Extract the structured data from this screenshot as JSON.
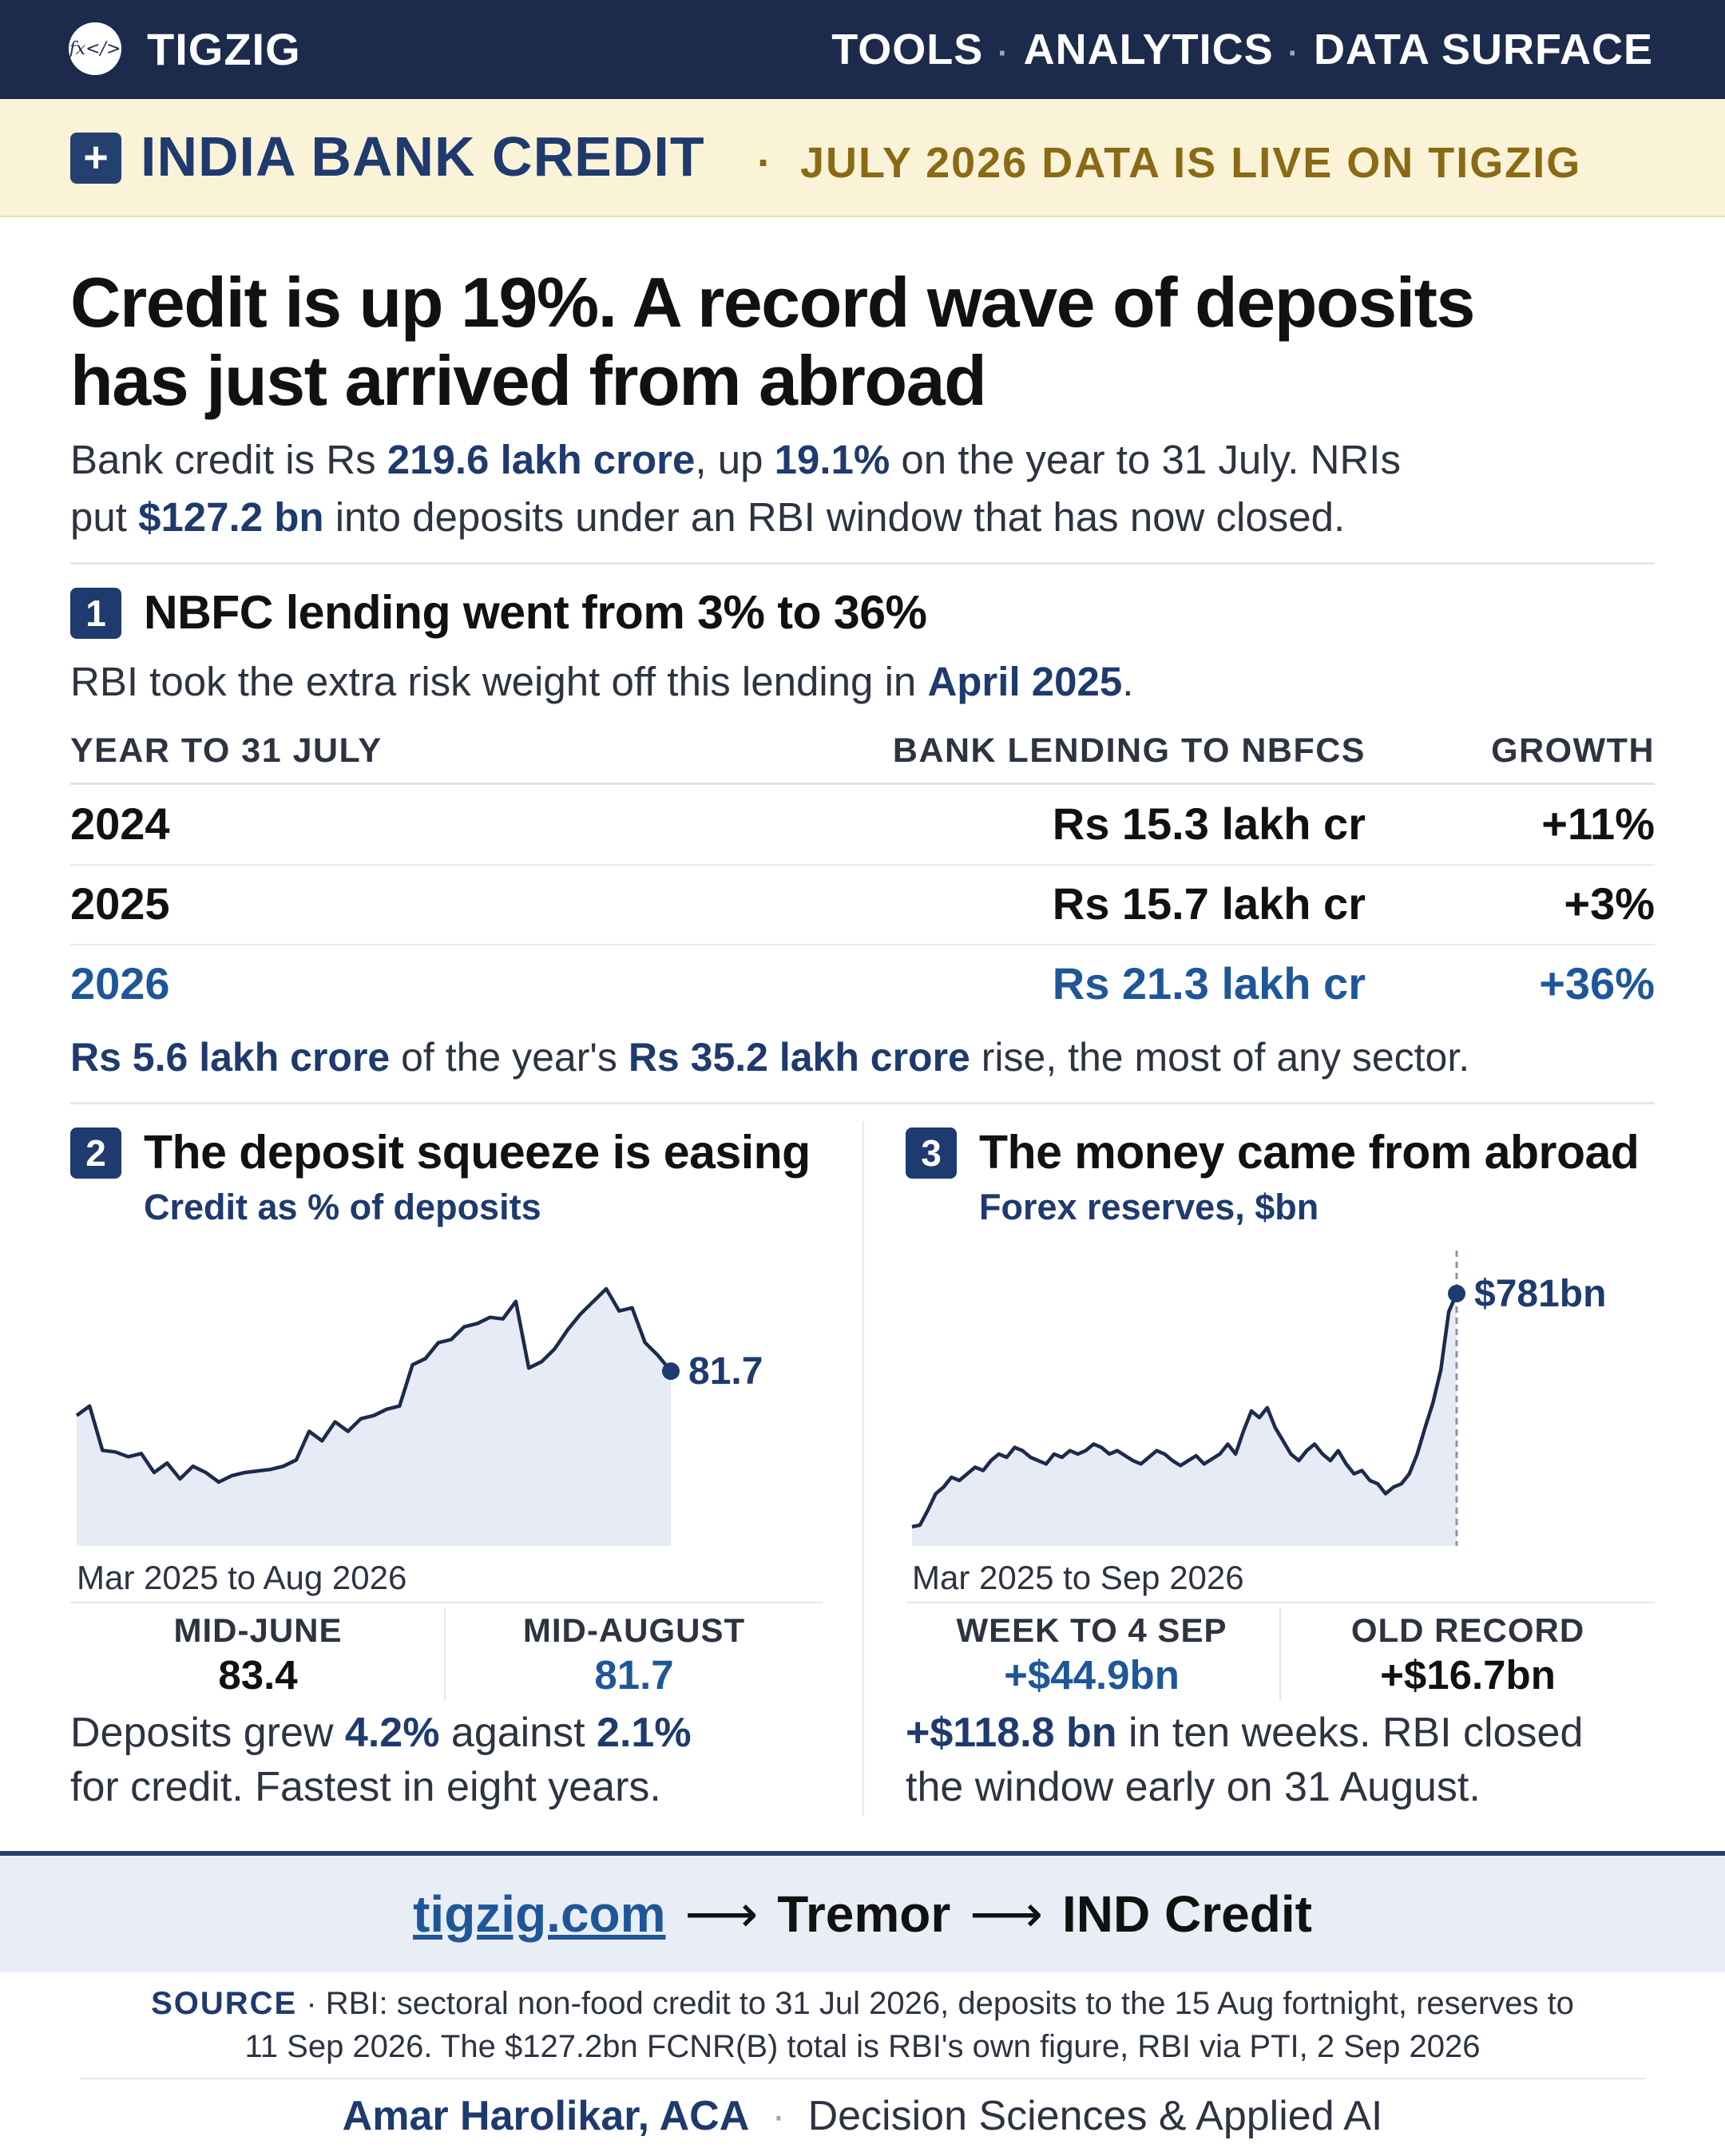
{
  "header": {
    "brand": "TIGZIG",
    "logo_text": "fx</>",
    "nav": [
      "TOOLS",
      "ANALYTICS",
      "DATA SURFACE"
    ],
    "separator": "·"
  },
  "banner": {
    "icon": "plus-icon",
    "title": "INDIA BANK CREDIT",
    "subtitle": "JULY 2026 DATA IS LIVE ON TIGZIG"
  },
  "headline": {
    "line1": "Credit is up 19%. A record wave of deposits",
    "line2": "has just arrived from abroad"
  },
  "lead": {
    "p1": "Bank credit is Rs ",
    "b1": "219.6 lakh crore",
    "p2": ", up ",
    "b2": "19.1%",
    "p3": " on the year to 31 July. NRIs",
    "p4": "put ",
    "b3": "$127.2 bn",
    "p5": " into deposits under an RBI window that has now closed."
  },
  "section1": {
    "number": "1",
    "title": "NBFC lending went from 3% to 36%",
    "sub_prefix": "RBI took the extra risk weight off this lending in ",
    "sub_bold": "April 2025",
    "sub_suffix": ".",
    "columns": [
      "YEAR TO 31 JULY",
      "BANK LENDING TO NBFCS",
      "GROWTH"
    ],
    "rows": [
      {
        "year": "2024",
        "lending": "Rs 15.3 lakh cr",
        "growth": "+11%"
      },
      {
        "year": "2025",
        "lending": "Rs 15.7 lakh cr",
        "growth": "+3%"
      },
      {
        "year": "2026",
        "lending": "Rs 21.3 lakh cr",
        "growth": "+36%"
      }
    ],
    "note_b1": "Rs 5.6 lakh crore",
    "note_t1": " of the year's ",
    "note_b2": "Rs 35.2 lakh crore",
    "note_t2": " rise, the most of any sector."
  },
  "section2": {
    "number": "2",
    "title": "The deposit squeeze is easing",
    "chart_subtitle": "Credit as % of deposits",
    "end_label": "81.7",
    "range": "Mar 2025 to Aug 2026",
    "stats": [
      {
        "label": "MID-JUNE",
        "value": "83.4"
      },
      {
        "label": "MID-AUGUST",
        "value": "81.7"
      }
    ],
    "para_t1": "Deposits grew ",
    "para_b1": "4.2%",
    "para_t2": " against ",
    "para_b2": "2.1%",
    "para_t3": "for credit. Fastest in eight years."
  },
  "section3": {
    "number": "3",
    "title": "The money came from abroad",
    "chart_subtitle": "Forex reserves, $bn",
    "end_label": "$781bn",
    "range": "Mar 2025 to Sep 2026",
    "stats": [
      {
        "label": "WEEK TO 4 SEP",
        "value": "+$44.9bn"
      },
      {
        "label": "OLD RECORD",
        "value": "+$16.7bn"
      }
    ],
    "para_b1": "+$118.8 bn",
    "para_t1": " in ten weeks. RBI closed",
    "para_t2": "the window early on 31 August."
  },
  "cta": {
    "link": "tigzig.com",
    "arrow": "⟶",
    "step1": "Tremor",
    "step2": "IND Credit"
  },
  "source": {
    "label": "SOURCE",
    "sep": "·",
    "text1": "RBI: sectoral non-food credit to 31 Jul 2026, deposits to the 15 Aug fortnight, reserves to",
    "text2": "11 Sep 2026. The $127.2bn FCNR(B) total is RBI's own figure, RBI via PTI, 2 Sep 2026"
  },
  "signature": {
    "name": "Amar Harolikar, ACA",
    "sep": "·",
    "role": "Decision Sciences & Applied AI"
  },
  "colors": {
    "navy": "#1c2b4b",
    "accent": "#1e3a6e",
    "highlight": "#1e5799",
    "banner_bg": "#fbf3d7",
    "banner_sub": "#8a6a14",
    "area_fill": "#e6ebf5"
  },
  "chart_data": [
    {
      "type": "area",
      "title": "Credit as % of deposits",
      "xlabel": "Mar 2025 to Aug 2026",
      "series": [
        {
          "values": [
            80.3,
            80.6,
            79.2,
            79.15,
            79.0,
            79.1,
            78.5,
            78.8,
            78.3,
            78.7,
            78.5,
            78.2,
            78.4,
            78.5,
            78.55,
            78.6,
            78.7,
            78.9,
            79.8,
            79.5,
            80.1,
            79.8,
            80.2,
            80.3,
            80.5,
            80.6,
            81.9,
            82.1,
            82.6,
            82.7,
            83.1,
            83.2,
            83.4,
            83.35,
            83.9,
            81.8,
            82.0,
            82.4,
            83.0,
            83.5,
            83.9,
            84.3,
            83.6,
            83.7,
            82.6,
            82.2,
            81.7
          ]
        }
      ],
      "annotation": "81.7"
    },
    {
      "type": "area",
      "title": "Forex reserves, $bn",
      "xlabel": "Mar 2025 to Sep 2026",
      "series": [
        {
          "values": [
            640,
            641,
            650,
            660,
            664,
            670,
            668,
            672,
            676,
            674,
            680,
            684,
            682,
            688,
            686,
            682,
            680,
            678,
            684,
            682,
            686,
            684,
            686,
            690,
            688,
            684,
            686,
            683,
            680,
            678,
            682,
            686,
            684,
            680,
            677,
            680,
            683,
            678,
            681,
            684,
            690,
            684,
            698,
            710,
            706,
            712,
            700,
            692,
            684,
            680,
            686,
            690,
            684,
            680,
            686,
            678,
            672,
            674,
            668,
            666,
            660,
            664,
            666,
            672,
            684,
            700,
            715,
            735,
            770,
            781
          ]
        }
      ],
      "annotation": "$781bn"
    }
  ]
}
